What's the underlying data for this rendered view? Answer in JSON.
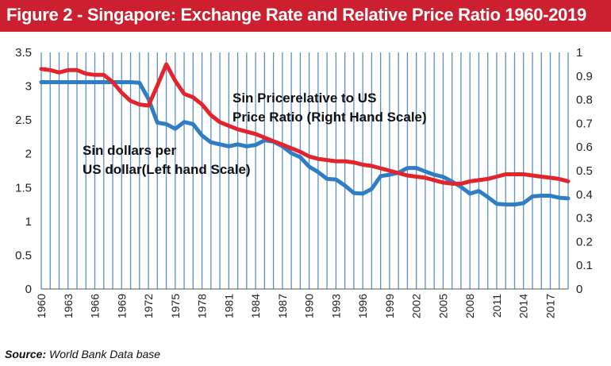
{
  "title": "Figure 2 - Singapore: Exchange Rate and Relative Price Ratio 1960-2019",
  "source_label": "Source:",
  "source_text": "World Bank Data base",
  "colors": {
    "title_bg": "#cc1f2f",
    "exchange_line": "#2f7ec4",
    "price_line": "#e3242b",
    "grid": "#5b8fc9"
  },
  "chart_data": {
    "type": "line",
    "x": [
      1960,
      1961,
      1962,
      1963,
      1964,
      1965,
      1966,
      1967,
      1968,
      1969,
      1970,
      1971,
      1972,
      1973,
      1974,
      1975,
      1976,
      1977,
      1978,
      1979,
      1980,
      1981,
      1982,
      1983,
      1984,
      1985,
      1986,
      1987,
      1988,
      1989,
      1990,
      1991,
      1992,
      1993,
      1994,
      1995,
      1996,
      1997,
      1998,
      1999,
      2000,
      2001,
      2002,
      2003,
      2004,
      2005,
      2006,
      2007,
      2008,
      2009,
      2010,
      2011,
      2012,
      2013,
      2014,
      2015,
      2016,
      2017,
      2018,
      2019
    ],
    "x_tick_labels": [
      "1960",
      "1963",
      "1966",
      "1969",
      "1972",
      "1975",
      "1978",
      "1981",
      "1984",
      "1987",
      "1990",
      "1993",
      "1996",
      "1999",
      "2002",
      "2005",
      "2008",
      "2011",
      "2014",
      "2017"
    ],
    "y_left_ticks": [
      "0",
      "0.5",
      "1",
      "1.5",
      "2",
      "2.5",
      "3",
      "3.5"
    ],
    "y_right_ticks": [
      "0",
      "0.1",
      "0.2",
      "0.3",
      "0.4",
      "0.5",
      "0.6",
      "0.7",
      "0.8",
      "0.9",
      "1"
    ],
    "y_left_lim": [
      0,
      3.5
    ],
    "y_right_lim": [
      0,
      1
    ],
    "grid": "vertical",
    "series": [
      {
        "name": "Sin dollars per US dollar(Left hand Scale)",
        "axis": "left",
        "label_lines": [
          "Sin dollars per",
          "US dollar(Left hand Scale)"
        ],
        "values": [
          3.06,
          3.06,
          3.06,
          3.06,
          3.06,
          3.06,
          3.06,
          3.06,
          3.06,
          3.06,
          3.06,
          3.05,
          2.81,
          2.46,
          2.44,
          2.37,
          2.47,
          2.44,
          2.27,
          2.17,
          2.14,
          2.11,
          2.14,
          2.11,
          2.13,
          2.2,
          2.18,
          2.11,
          2.01,
          1.95,
          1.81,
          1.73,
          1.63,
          1.62,
          1.53,
          1.42,
          1.41,
          1.48,
          1.67,
          1.69,
          1.72,
          1.79,
          1.79,
          1.74,
          1.69,
          1.66,
          1.59,
          1.51,
          1.41,
          1.45,
          1.36,
          1.26,
          1.25,
          1.25,
          1.27,
          1.37,
          1.38,
          1.38,
          1.35,
          1.34
        ]
      },
      {
        "name": "Sin Price relative to US Price Ratio (Right Hand Scale)",
        "axis": "right",
        "label_lines": [
          "Sin Pricerelative to US",
          "Price Ratio (Right Hand Scale)"
        ],
        "values": [
          0.93,
          0.925,
          0.915,
          0.925,
          0.925,
          0.91,
          0.905,
          0.905,
          0.875,
          0.83,
          0.795,
          0.78,
          0.775,
          0.86,
          0.95,
          0.88,
          0.825,
          0.81,
          0.78,
          0.735,
          0.705,
          0.69,
          0.675,
          0.665,
          0.655,
          0.64,
          0.625,
          0.61,
          0.595,
          0.58,
          0.56,
          0.55,
          0.545,
          0.54,
          0.54,
          0.535,
          0.525,
          0.52,
          0.51,
          0.5,
          0.49,
          0.48,
          0.475,
          0.47,
          0.46,
          0.45,
          0.445,
          0.445,
          0.455,
          0.46,
          0.465,
          0.475,
          0.485,
          0.485,
          0.485,
          0.48,
          0.475,
          0.47,
          0.465,
          0.455
        ]
      }
    ]
  }
}
